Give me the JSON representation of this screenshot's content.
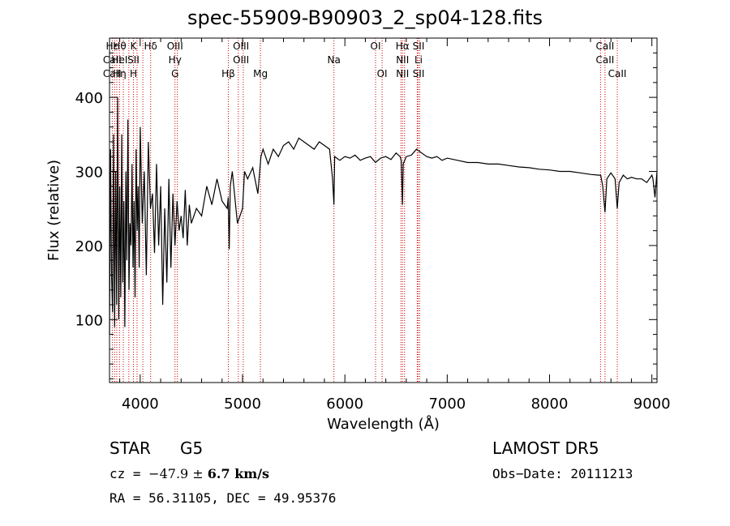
{
  "chart_data": {
    "type": "line",
    "title": "spec-55909-B90903_2_sp04-128.fits",
    "xlabel": "Wavelength (Å)",
    "ylabel": "Flux (relative)",
    "xlim": [
      3700,
      9050
    ],
    "ylim": [
      15,
      480
    ],
    "xticks": [
      4000,
      5000,
      6000,
      7000,
      8000,
      9000
    ],
    "yticks": [
      100,
      200,
      300,
      400
    ],
    "grid": false,
    "series": [
      {
        "x": [
          3700,
          3710,
          3720,
          3730,
          3740,
          3750,
          3760,
          3770,
          3780,
          3790,
          3800,
          3810,
          3820,
          3830,
          3840,
          3850,
          3860,
          3870,
          3880,
          3890,
          3900,
          3910,
          3920,
          3930,
          3940,
          3950,
          3960,
          3970,
          3980,
          3990,
          4000,
          4020,
          4040,
          4060,
          4080,
          4100,
          4120,
          4140,
          4160,
          4180,
          4200,
          4220,
          4240,
          4260,
          4280,
          4300,
          4320,
          4340,
          4360,
          4380,
          4400,
          4420,
          4440,
          4460,
          4480,
          4500,
          4550,
          4600,
          4650,
          4700,
          4750,
          4800,
          4850,
          4860,
          4870,
          4880,
          4900,
          4950,
          5000,
          5020,
          5050,
          5100,
          5150,
          5180,
          5200,
          5250,
          5300,
          5350,
          5400,
          5450,
          5500,
          5550,
          5600,
          5650,
          5700,
          5750,
          5800,
          5850,
          5880,
          5893,
          5900,
          5950,
          6000,
          6050,
          6100,
          6150,
          6200,
          6250,
          6300,
          6350,
          6400,
          6450,
          6500,
          6540,
          6550,
          6563,
          6570,
          6600,
          6650,
          6700,
          6750,
          6800,
          6850,
          6900,
          6950,
          7000,
          7100,
          7200,
          7300,
          7400,
          7500,
          7600,
          7700,
          7800,
          7900,
          8000,
          8100,
          8200,
          8300,
          8400,
          8480,
          8500,
          8520,
          8542,
          8560,
          8600,
          8640,
          8662,
          8680,
          8720,
          8760,
          8800,
          8850,
          8900,
          8950,
          9000,
          9010,
          9030,
          9050
        ],
        "y": [
          80,
          330,
          160,
          110,
          350,
          90,
          300,
          120,
          400,
          100,
          280,
          130,
          350,
          150,
          260,
          90,
          300,
          180,
          370,
          140,
          230,
          200,
          310,
          170,
          260,
          130,
          330,
          220,
          280,
          170,
          360,
          230,
          300,
          160,
          340,
          250,
          270,
          190,
          310,
          200,
          280,
          120,
          250,
          150,
          290,
          170,
          270,
          200,
          260,
          220,
          240,
          210,
          275,
          200,
          255,
          230,
          250,
          240,
          280,
          255,
          290,
          260,
          250,
          265,
          195,
          280,
          300,
          230,
          250,
          300,
          290,
          305,
          270,
          320,
          330,
          310,
          330,
          320,
          335,
          340,
          330,
          345,
          340,
          335,
          330,
          340,
          335,
          330,
          290,
          255,
          320,
          315,
          320,
          318,
          322,
          315,
          318,
          320,
          312,
          318,
          320,
          316,
          325,
          320,
          315,
          255,
          310,
          320,
          322,
          330,
          325,
          320,
          318,
          320,
          315,
          318,
          315,
          312,
          312,
          310,
          310,
          308,
          306,
          305,
          303,
          302,
          300,
          300,
          298,
          296,
          295,
          295,
          280,
          245,
          290,
          298,
          290,
          250,
          285,
          295,
          290,
          292,
          290,
          290,
          285,
          295,
          290,
          265,
          300
        ]
      }
    ],
    "line_labels": [
      {
        "x": 3726,
        "lines": [
          "Hε",
          "CaII",
          "CaII"
        ]
      },
      {
        "x": 3799,
        "lines": [
          "Hθ",
          "HeI",
          "Hη"
        ]
      },
      {
        "x": 3934,
        "lines": [
          "K",
          "SII",
          "H"
        ]
      },
      {
        "x": 4102,
        "lines": [
          "Hδ",
          "",
          ""
        ]
      },
      {
        "x": 4340,
        "lines": [
          "OIII",
          "Hγ",
          "G"
        ]
      },
      {
        "x": 4861,
        "lines": [
          "",
          "",
          "Hβ"
        ]
      },
      {
        "x": 4985,
        "lines": [
          "OIII",
          "OIII",
          ""
        ]
      },
      {
        "x": 5175,
        "lines": [
          "",
          "",
          "Mg"
        ]
      },
      {
        "x": 5893,
        "lines": [
          "",
          "Na",
          ""
        ]
      },
      {
        "x": 6300,
        "lines": [
          "OI",
          "",
          ""
        ]
      },
      {
        "x": 6364,
        "lines": [
          "",
          "",
          "OI"
        ]
      },
      {
        "x": 6563,
        "lines": [
          "Hα",
          "NII",
          "NII"
        ]
      },
      {
        "x": 6720,
        "lines": [
          "SII",
          "Li",
          "SII"
        ]
      },
      {
        "x": 8542,
        "lines": [
          "CaII",
          "CaII",
          ""
        ]
      },
      {
        "x": 8662,
        "lines": [
          "",
          "",
          "CaII"
        ]
      }
    ],
    "marker_lines": [
      3727,
      3750,
      3771,
      3798,
      3835,
      3889,
      3934,
      3969,
      4026,
      4102,
      4340,
      4363,
      4861,
      4959,
      5007,
      5175,
      5893,
      6300,
      6364,
      6548,
      6563,
      6583,
      6707,
      6716,
      6731,
      8498,
      8542,
      8662
    ]
  },
  "info": {
    "object_class": "STAR",
    "subclass": "G5",
    "survey": "LAMOST  DR5",
    "cz_prefix": "cz = ",
    "cz_value": "−47.9",
    "cz_pm": " ± ",
    "cz_err": "6.7 km/s",
    "obs_date": "Obs−Date: 20111213",
    "coords": "RA =  56.31105, DEC =  49.95376"
  }
}
